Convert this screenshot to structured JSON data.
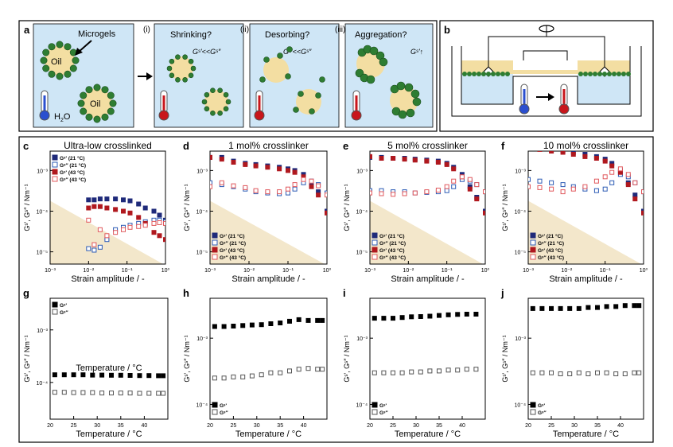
{
  "schematic": {
    "panel_a": {
      "label": "a",
      "microgels_label": "Microgels",
      "oil_label": "Oil",
      "water_label": "H",
      "water_sub": "2",
      "water_tail": "O",
      "step_i": "(i)",
      "step_ii": "(ii)",
      "step_iii": "(iii)",
      "q1": "Shrinking?",
      "q2": "Desorbing?",
      "q3": "Aggregation?",
      "rel1": "Gˢ'<<Gˢ″",
      "rel2": "Gˢ'<<Gˢ″",
      "rel3": "Gˢ'↑"
    },
    "panel_b": {
      "label": "b"
    }
  },
  "colors": {
    "water": "#cfe6f6",
    "oil": "#f3dea2",
    "microgel": "#2e7d32",
    "accent_blue": "#1f2a7a",
    "accent_red": "#b0181e",
    "shade": "#f3e7cb"
  },
  "strain_panels": [
    {
      "label": "c",
      "title": "Ultra-low crosslinked",
      "legend_pos": "top-left"
    },
    {
      "label": "d",
      "title": "1 mol% crosslinker",
      "legend_pos": "bottom-left"
    },
    {
      "label": "e",
      "title": "5 mol% crosslinker",
      "legend_pos": "bottom-left"
    },
    {
      "label": "f",
      "title": "10 mol% crosslinker",
      "legend_pos": "bottom-left"
    }
  ],
  "temp_panels": [
    {
      "label": "g",
      "note": "Temperature / °C",
      "legend_pos": "top-left"
    },
    {
      "label": "h",
      "legend_pos": "bottom-left"
    },
    {
      "label": "i",
      "legend_pos": "bottom-left"
    },
    {
      "label": "j",
      "legend_pos": "bottom-left"
    }
  ],
  "axis_text": {
    "strain_xlabel": "Strain amplitude / -",
    "temp_xlabel": "Temperature / °C",
    "ylabel": "Gˢ', Gˢ″ / Nm⁻¹",
    "strain_xticks": [
      "10⁻³",
      "10⁻²",
      "10⁻¹",
      "10⁰"
    ],
    "strain_yticks": [
      "10⁻³",
      "10⁻⁴",
      "10⁻⁵"
    ],
    "temp_xticks": [
      "20",
      "25",
      "30",
      "35",
      "40"
    ],
    "temp_yticks": [
      "10⁻³",
      "10⁻⁴"
    ]
  },
  "legends": {
    "strain": [
      "Gˢ' (21 °C)",
      "Gˢ″ (21 °C)",
      "Gˢ' (43 °C)",
      "Gˢ″ (43 °C)"
    ],
    "temp": [
      "Gˢ'",
      "Gˢ″"
    ]
  },
  "chart_data": [
    {
      "panel": "c",
      "type": "scatter",
      "xscale": "log",
      "yscale": "log",
      "xlim": [
        0.001,
        1
      ],
      "ylim": [
        5e-06,
        0.003
      ],
      "series": [
        {
          "name": "Gˢ' (21 °C)",
          "x": [
            0.01,
            0.014,
            0.02,
            0.03,
            0.05,
            0.08,
            0.12,
            0.2,
            0.3,
            0.5,
            0.7,
            1.0
          ],
          "y": [
            0.00019,
            0.00019,
            0.0002,
            0.0002,
            0.0002,
            0.00019,
            0.00018,
            0.00015,
            0.00012,
            0.0001,
            8e-05,
            6e-05
          ]
        },
        {
          "name": "Gˢ″ (21 °C)",
          "x": [
            0.01,
            0.014,
            0.02,
            0.03,
            0.05,
            0.08,
            0.12,
            0.2,
            0.3,
            0.5,
            0.7,
            1.0
          ],
          "y": [
            1.2e-05,
            1.1e-05,
            1.3e-05,
            2e-05,
            3.5e-05,
            4e-05,
            4.5e-05,
            5e-05,
            5.5e-05,
            6e-05,
            6e-05,
            5.5e-05
          ]
        },
        {
          "name": "Gˢ' (43 °C)",
          "x": [
            0.01,
            0.014,
            0.02,
            0.03,
            0.05,
            0.08,
            0.12,
            0.2,
            0.3,
            0.5,
            0.7,
            1.0
          ],
          "y": [
            0.00012,
            0.00013,
            0.00013,
            0.00012,
            0.00011,
            0.0001,
            9e-05,
            7e-05,
            5e-05,
            3e-05,
            2.5e-05,
            2e-05
          ]
        },
        {
          "name": "Gˢ″ (43 °C)",
          "x": [
            0.01,
            0.014,
            0.02,
            0.03,
            0.05,
            0.08,
            0.12,
            0.2,
            0.3,
            0.5,
            0.7,
            1.0
          ],
          "y": [
            6e-05,
            1.5e-05,
            3.5e-05,
            2.5e-05,
            3e-05,
            3.5e-05,
            4e-05,
            4.2e-05,
            4.5e-05,
            5e-05,
            5.2e-05,
            5e-05
          ]
        }
      ]
    },
    {
      "panel": "d",
      "type": "scatter",
      "xscale": "log",
      "yscale": "log",
      "xlim": [
        0.001,
        1
      ],
      "ylim": [
        5e-06,
        0.003
      ],
      "series": [
        {
          "name": "Gˢ' (21 °C)",
          "x": [
            0.001,
            0.002,
            0.004,
            0.008,
            0.015,
            0.03,
            0.06,
            0.1,
            0.15,
            0.25,
            0.4,
            0.6,
            1.0
          ],
          "y": [
            0.0021,
            0.0021,
            0.0017,
            0.0015,
            0.0014,
            0.0013,
            0.0012,
            0.0011,
            0.001,
            0.0008,
            0.0005,
            0.0003,
            0.0001
          ]
        },
        {
          "name": "Gˢ″ (21 °C)",
          "x": [
            0.001,
            0.002,
            0.004,
            0.008,
            0.015,
            0.03,
            0.06,
            0.1,
            0.15,
            0.25,
            0.4,
            0.6,
            1.0
          ],
          "y": [
            0.0005,
            0.00045,
            0.0004,
            0.00035,
            0.0003,
            0.00028,
            0.00027,
            0.00028,
            0.00035,
            0.0005,
            0.00055,
            0.00045,
            0.00028
          ]
        },
        {
          "name": "Gˢ' (43 °C)",
          "x": [
            0.001,
            0.002,
            0.004,
            0.008,
            0.015,
            0.03,
            0.06,
            0.1,
            0.15,
            0.25,
            0.4,
            0.6,
            1.0
          ],
          "y": [
            0.0021,
            0.0019,
            0.0016,
            0.0014,
            0.0013,
            0.0012,
            0.0011,
            0.001,
            0.0009,
            0.0007,
            0.0004,
            0.00025,
            9e-05
          ]
        },
        {
          "name": "Gˢ″ (43 °C)",
          "x": [
            0.001,
            0.002,
            0.004,
            0.008,
            0.015,
            0.03,
            0.06,
            0.1,
            0.15,
            0.25,
            0.4,
            0.6,
            1.0
          ],
          "y": [
            0.0004,
            0.0005,
            0.00042,
            0.00038,
            0.00032,
            0.0003,
            0.0003,
            0.00035,
            0.00045,
            0.0006,
            0.00055,
            0.00042,
            0.00025
          ]
        }
      ]
    },
    {
      "panel": "e",
      "type": "scatter",
      "xscale": "log",
      "yscale": "log",
      "xlim": [
        0.001,
        1
      ],
      "ylim": [
        5e-06,
        0.003
      ],
      "series": [
        {
          "name": "Gˢ' (21 °C)",
          "x": [
            0.001,
            0.002,
            0.004,
            0.008,
            0.015,
            0.03,
            0.06,
            0.1,
            0.15,
            0.25,
            0.4,
            0.6,
            1.0
          ],
          "y": [
            0.0021,
            0.0021,
            0.002,
            0.002,
            0.0019,
            0.0018,
            0.0017,
            0.0015,
            0.0012,
            0.0008,
            0.0004,
            0.00022,
            0.0001
          ]
        },
        {
          "name": "Gˢ″ (21 °C)",
          "x": [
            0.001,
            0.002,
            0.004,
            0.008,
            0.015,
            0.03,
            0.06,
            0.1,
            0.15,
            0.25,
            0.4,
            0.6,
            1.0
          ],
          "y": [
            0.00032,
            0.00032,
            0.0003,
            0.0003,
            0.00028,
            0.00029,
            0.0003,
            0.00032,
            0.0004,
            0.0006,
            0.00055,
            0.00045,
            0.0003
          ]
        },
        {
          "name": "Gˢ' (43 °C)",
          "x": [
            0.001,
            0.002,
            0.004,
            0.008,
            0.015,
            0.03,
            0.06,
            0.1,
            0.15,
            0.25,
            0.4,
            0.6,
            1.0
          ],
          "y": [
            0.0022,
            0.002,
            0.002,
            0.0019,
            0.0018,
            0.0017,
            0.0016,
            0.0014,
            0.0011,
            0.0007,
            0.00035,
            0.0002,
            9e-05
          ]
        },
        {
          "name": "Gˢ″ (43 °C)",
          "x": [
            0.001,
            0.002,
            0.004,
            0.008,
            0.015,
            0.03,
            0.06,
            0.1,
            0.15,
            0.25,
            0.4,
            0.6,
            1.0
          ],
          "y": [
            0.00028,
            0.00027,
            0.00026,
            0.00027,
            0.00028,
            0.0003,
            0.00033,
            0.0004,
            0.00055,
            0.0007,
            0.0006,
            0.00045,
            0.0003
          ]
        }
      ]
    },
    {
      "panel": "f",
      "type": "scatter",
      "xscale": "log",
      "yscale": "log",
      "xlim": [
        0.001,
        1
      ],
      "ylim": [
        5e-06,
        0.003
      ],
      "series": [
        {
          "name": "Gˢ' (21 °C)",
          "x": [
            0.001,
            0.002,
            0.004,
            0.008,
            0.015,
            0.03,
            0.06,
            0.1,
            0.15,
            0.25,
            0.4,
            0.6,
            1.0
          ],
          "y": [
            0.0038,
            0.0036,
            0.0033,
            0.003,
            0.0028,
            0.0025,
            0.0022,
            0.0019,
            0.0015,
            0.001,
            0.0005,
            0.00025,
            0.0001
          ]
        },
        {
          "name": "Gˢ″ (21 °C)",
          "x": [
            0.001,
            0.002,
            0.004,
            0.008,
            0.015,
            0.03,
            0.06,
            0.1,
            0.15,
            0.25,
            0.4,
            0.6,
            1.0
          ],
          "y": [
            0.0006,
            0.00055,
            0.0005,
            0.00045,
            0.0004,
            0.00035,
            0.00032,
            0.00035,
            0.0005,
            0.0008,
            0.0007,
            0.0005,
            0.0003
          ]
        },
        {
          "name": "Gˢ' (43 °C)",
          "x": [
            0.001,
            0.002,
            0.004,
            0.008,
            0.015,
            0.03,
            0.06,
            0.1,
            0.15,
            0.25,
            0.4,
            0.6,
            1.0
          ],
          "y": [
            0.0035,
            0.0033,
            0.003,
            0.0028,
            0.0025,
            0.0022,
            0.002,
            0.0017,
            0.0013,
            0.0009,
            0.00045,
            0.0002,
            9e-05
          ]
        },
        {
          "name": "Gˢ″ (43 °C)",
          "x": [
            0.001,
            0.002,
            0.004,
            0.008,
            0.015,
            0.03,
            0.06,
            0.1,
            0.15,
            0.25,
            0.4,
            0.6,
            1.0
          ],
          "y": [
            0.0004,
            0.00038,
            0.00035,
            0.0003,
            0.00035,
            0.0004,
            0.00055,
            0.0007,
            0.0009,
            0.0011,
            0.0008,
            0.0005,
            0.0003
          ]
        }
      ]
    },
    {
      "panel": "g",
      "type": "scatter",
      "yscale": "log",
      "xlim": [
        20,
        45
      ],
      "ylim": [
        2e-05,
        0.004
      ],
      "series": [
        {
          "name": "Gˢ'",
          "x": [
            21,
            23,
            25,
            27,
            29,
            31,
            33,
            35,
            37,
            39,
            41,
            43,
            44
          ],
          "y": [
            0.00014,
            0.00014,
            0.00014,
            0.00014,
            0.000138,
            0.000138,
            0.000137,
            0.000137,
            0.000136,
            0.000135,
            0.000135,
            0.000134,
            0.000134
          ]
        },
        {
          "name": "Gˢ″",
          "x": [
            21,
            23,
            25,
            27,
            29,
            31,
            33,
            35,
            37,
            39,
            41,
            43,
            44
          ],
          "y": [
            6.5e-05,
            6.5e-05,
            6.4e-05,
            6.4e-05,
            6.4e-05,
            6.3e-05,
            6.3e-05,
            6.3e-05,
            6.3e-05,
            6.2e-05,
            6.2e-05,
            6.2e-05,
            6.2e-05
          ]
        }
      ]
    },
    {
      "panel": "h",
      "type": "scatter",
      "yscale": "log",
      "xlim": [
        20,
        45
      ],
      "ylim": [
        6e-05,
        0.004
      ],
      "series": [
        {
          "name": "Gˢ'",
          "x": [
            21,
            23,
            25,
            27,
            29,
            31,
            33,
            35,
            37,
            39,
            41,
            43,
            44
          ],
          "y": [
            0.0015,
            0.0015,
            0.00152,
            0.00155,
            0.00158,
            0.0016,
            0.00165,
            0.0017,
            0.0018,
            0.0019,
            0.00185,
            0.00185,
            0.00185
          ]
        },
        {
          "name": "Gˢ″",
          "x": [
            21,
            23,
            25,
            27,
            29,
            31,
            33,
            35,
            37,
            39,
            41,
            43,
            44
          ],
          "y": [
            0.00025,
            0.00025,
            0.00026,
            0.00026,
            0.00027,
            0.00028,
            0.0003,
            0.0003,
            0.00032,
            0.00034,
            0.00035,
            0.00034,
            0.00034
          ]
        }
      ]
    },
    {
      "panel": "i",
      "type": "scatter",
      "yscale": "log",
      "xlim": [
        20,
        45
      ],
      "ylim": [
        6e-05,
        0.004
      ],
      "series": [
        {
          "name": "Gˢ'",
          "x": [
            21,
            23,
            25,
            27,
            29,
            31,
            33,
            35,
            37,
            39,
            41,
            43
          ],
          "y": [
            0.002,
            0.002,
            0.002,
            0.00205,
            0.0021,
            0.00212,
            0.00215,
            0.0022,
            0.00225,
            0.00228,
            0.0023,
            0.0023
          ]
        },
        {
          "name": "Gˢ″",
          "x": [
            21,
            23,
            25,
            27,
            29,
            31,
            33,
            35,
            37,
            39,
            41,
            43
          ],
          "y": [
            0.0003,
            0.0003,
            0.0003,
            0.0003,
            0.00031,
            0.00031,
            0.00032,
            0.00032,
            0.00033,
            0.00033,
            0.00034,
            0.00034
          ]
        }
      ]
    },
    {
      "panel": "j",
      "type": "scatter",
      "yscale": "log",
      "xlim": [
        20,
        45
      ],
      "ylim": [
        6e-05,
        0.004
      ],
      "series": [
        {
          "name": "Gˢ'",
          "x": [
            21,
            23,
            25,
            27,
            29,
            31,
            33,
            35,
            37,
            39,
            41,
            43,
            44
          ],
          "y": [
            0.0028,
            0.0028,
            0.0028,
            0.0028,
            0.0028,
            0.0028,
            0.0029,
            0.0029,
            0.003,
            0.003,
            0.0031,
            0.0031,
            0.0031
          ]
        },
        {
          "name": "Gˢ″",
          "x": [
            21,
            23,
            25,
            27,
            29,
            31,
            33,
            35,
            37,
            39,
            41,
            43,
            44
          ],
          "y": [
            0.0003,
            0.0003,
            0.0003,
            0.00029,
            0.00029,
            0.0003,
            0.00029,
            0.0003,
            0.0003,
            0.00029,
            0.00029,
            0.0003,
            0.0003
          ]
        }
      ]
    }
  ]
}
